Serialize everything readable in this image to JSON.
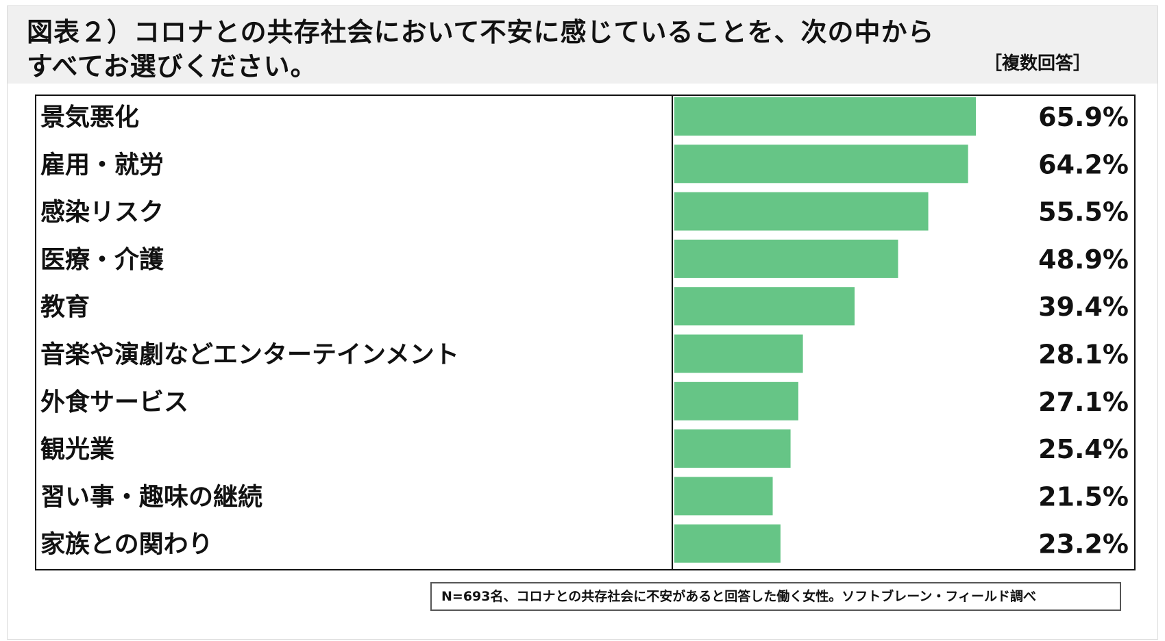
{
  "header": {
    "title_line1": "図表２）コロナとの共存社会において不安に感じていることを、次の中から",
    "title_line2": "すべてお選びください。",
    "note": "［複数回答］"
  },
  "source": "N=693名、コロナとの共存社会に不安があると回答した働く女性。ソフトブレーン・フィールド調べ",
  "colors": {
    "bar": "#66c586",
    "text": "#111111",
    "header_bg": "#f0f0f0"
  },
  "chart_data": {
    "type": "bar",
    "orientation": "horizontal",
    "categories": [
      "景気悪化",
      "雇用・就労",
      "感染リスク",
      "医療・介護",
      "教育",
      "音楽や演劇などエンターテインメント",
      "外食サービス",
      "観光業",
      "習い事・趣味の継続",
      "家族との関わり"
    ],
    "values": [
      65.9,
      64.2,
      55.5,
      48.9,
      39.4,
      28.1,
      27.1,
      25.4,
      21.5,
      23.2
    ],
    "value_labels": [
      "65.9%",
      "64.2%",
      "55.5%",
      "48.9%",
      "39.4%",
      "28.1%",
      "27.1%",
      "25.4%",
      "21.5%",
      "23.2%"
    ],
    "xlim": [
      0,
      100
    ],
    "grid": false,
    "legend": "none"
  }
}
